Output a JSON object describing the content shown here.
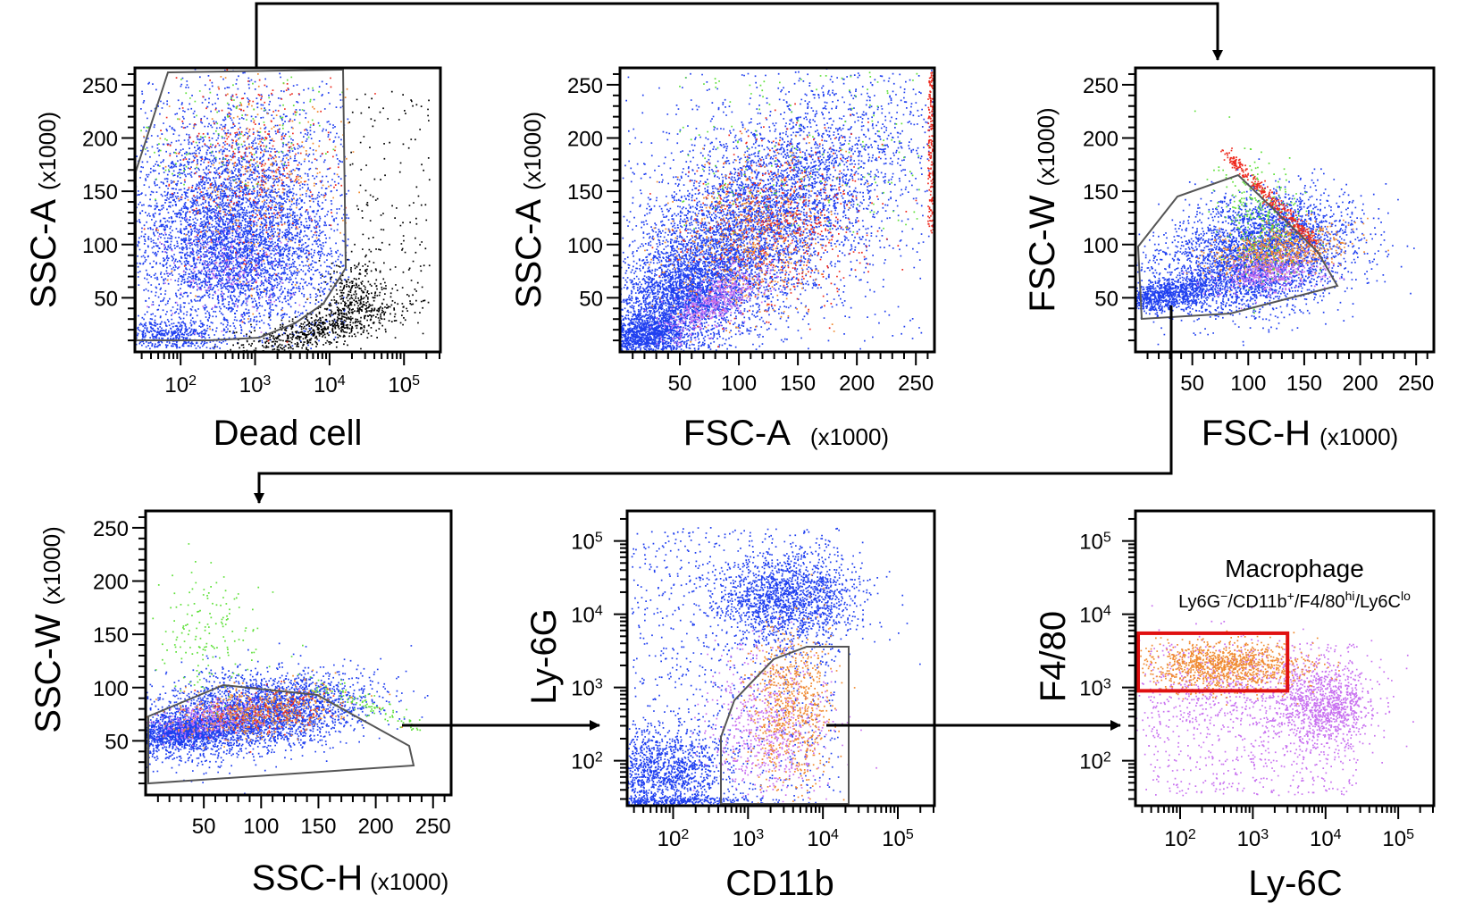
{
  "figure": {
    "type": "flow cytometry gating strategy",
    "panel_count": 6,
    "colors": {
      "live_blue": "#1f3ff0",
      "dead_black": "#000000",
      "green": "#5fe03a",
      "red": "#ee2a1f",
      "orange": "#f08a30",
      "violet": "#c870f0",
      "gate_gray": "#555555",
      "macrophage_gate": "#e01010"
    }
  },
  "chart_data": [
    {
      "id": "p1",
      "type": "scatter",
      "xlabel": "Dead cell",
      "xunit": "",
      "ylabel": "SSC-A",
      "yunit": "(x1000)",
      "xscale": "log",
      "yscale": "linear",
      "xlim": [
        25,
        300000
      ],
      "ylim": [
        0,
        265
      ],
      "xticks": [
        "10^2",
        "10^3",
        "10^4",
        "10^5"
      ],
      "yticks": [
        "50",
        "100",
        "150",
        "200",
        "250"
      ],
      "gate": "polygon",
      "gate_color": "#555555"
    },
    {
      "id": "p2",
      "type": "scatter",
      "xlabel": "FSC-A",
      "xunit": "(x1000)",
      "ylabel": "SSC-A",
      "yunit": "(x1000)",
      "xscale": "linear",
      "yscale": "linear",
      "xlim": [
        0,
        265
      ],
      "ylim": [
        0,
        265
      ],
      "xticks": [
        "50",
        "100",
        "150",
        "200",
        "250"
      ],
      "yticks": [
        "50",
        "100",
        "150",
        "200",
        "250"
      ]
    },
    {
      "id": "p3",
      "type": "scatter",
      "xlabel": "FSC-H",
      "xunit": "(x1000)",
      "ylabel": "FSC-W",
      "yunit": "(x1000)",
      "xscale": "linear",
      "yscale": "linear",
      "xlim": [
        0,
        265
      ],
      "ylim": [
        0,
        265
      ],
      "xticks": [
        "50",
        "100",
        "150",
        "200",
        "250"
      ],
      "yticks": [
        "50",
        "100",
        "150",
        "200",
        "250"
      ],
      "gate": "polygon",
      "gate_color": "#555555"
    },
    {
      "id": "p4",
      "type": "scatter",
      "xlabel": "SSC-H",
      "xunit": "(x1000)",
      "ylabel": "SSC-W",
      "yunit": "(x1000)",
      "xscale": "linear",
      "yscale": "linear",
      "xlim": [
        0,
        265
      ],
      "ylim": [
        0,
        265
      ],
      "xticks": [
        "50",
        "100",
        "150",
        "200",
        "250"
      ],
      "yticks": [
        "50",
        "100",
        "150",
        "200",
        "250"
      ],
      "gate": "polygon",
      "gate_color": "#555555"
    },
    {
      "id": "p5",
      "type": "scatter",
      "xlabel": "CD11b",
      "xunit": "",
      "ylabel": "Ly-6G",
      "yunit": "",
      "xscale": "log",
      "yscale": "log",
      "xlim": [
        25,
        300000
      ],
      "ylim": [
        25,
        250000
      ],
      "xticks": [
        "10^2",
        "10^3",
        "10^4",
        "10^5"
      ],
      "yticks": [
        "10^2",
        "10^3",
        "10^4",
        "10^5"
      ],
      "gate": "polygon",
      "gate_color": "#555555"
    },
    {
      "id": "p6",
      "type": "scatter",
      "xlabel": "Ly-6C",
      "xunit": "",
      "ylabel": "F4/80",
      "yunit": "",
      "xscale": "log",
      "yscale": "log",
      "xlim": [
        25,
        300000
      ],
      "ylim": [
        25,
        250000
      ],
      "xticks": [
        "10^2",
        "10^3",
        "10^4",
        "10^5"
      ],
      "yticks": [
        "10^2",
        "10^3",
        "10^4",
        "10^5"
      ],
      "gate": "rectangle",
      "gate_color": "#e01010",
      "gate_x": [
        25,
        3000
      ],
      "gate_y": [
        900,
        5500
      ],
      "annotation": {
        "title": "Macrophage",
        "sub_html": "Ly6G<tspan baseline-shift=\"super\" font-size=\"14\">−</tspan>/CD11b<tspan baseline-shift=\"super\" font-size=\"14\">+</tspan>/F4/80<tspan baseline-shift=\"super\" font-size=\"14\">hi</tspan>/Ly6C<tspan baseline-shift=\"super\" font-size=\"14\">lo</tspan>"
      }
    }
  ]
}
